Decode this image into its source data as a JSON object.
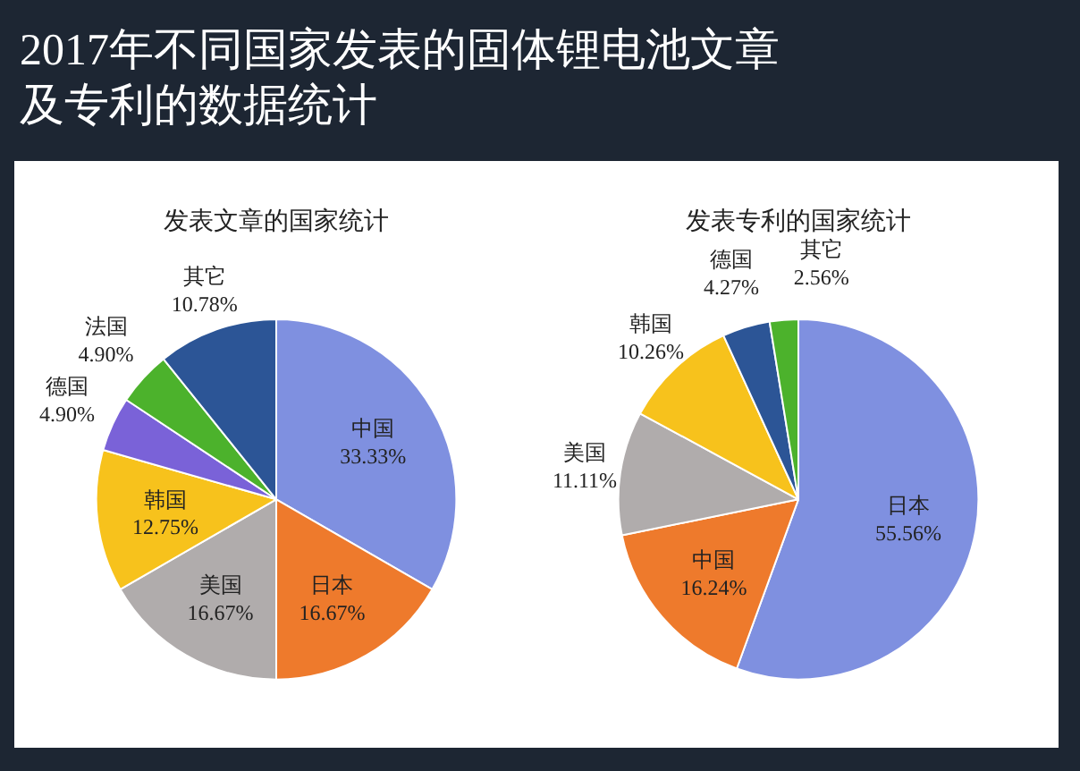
{
  "chart_data": [
    {
      "type": "pie",
      "title": "发表文章的国家统计",
      "annotations": [
        "2017年不同国家发表的固体锂电池文章及专利的数据统计"
      ],
      "categories": [
        "中国",
        "日本",
        "美国",
        "韩国",
        "德国",
        "法国",
        "其它"
      ],
      "values": [
        33.33,
        16.67,
        16.67,
        12.75,
        4.9,
        4.9,
        10.78
      ],
      "value_labels": [
        "33.33%",
        "16.67%",
        "16.67%",
        "12.75%",
        "4.90%",
        "4.90%",
        "10.78%"
      ],
      "colors": [
        "#7f90e0",
        "#ee7a2c",
        "#b0acac",
        "#f7c21c",
        "#7a62d8",
        "#4cb22c",
        "#2c5596"
      ]
    },
    {
      "type": "pie",
      "title": "发表专利的国家统计",
      "categories": [
        "日本",
        "中国",
        "美国",
        "韩国",
        "德国",
        "其它"
      ],
      "values": [
        55.56,
        16.24,
        11.11,
        10.26,
        4.27,
        2.56
      ],
      "value_labels": [
        "55.56%",
        "16.24%",
        "11.11%",
        "10.26%",
        "4.27%",
        "2.56%"
      ],
      "colors": [
        "#7f90e0",
        "#ee7a2c",
        "#b0acac",
        "#f7c21c",
        "#2c5596",
        "#4cb22c"
      ]
    }
  ]
}
